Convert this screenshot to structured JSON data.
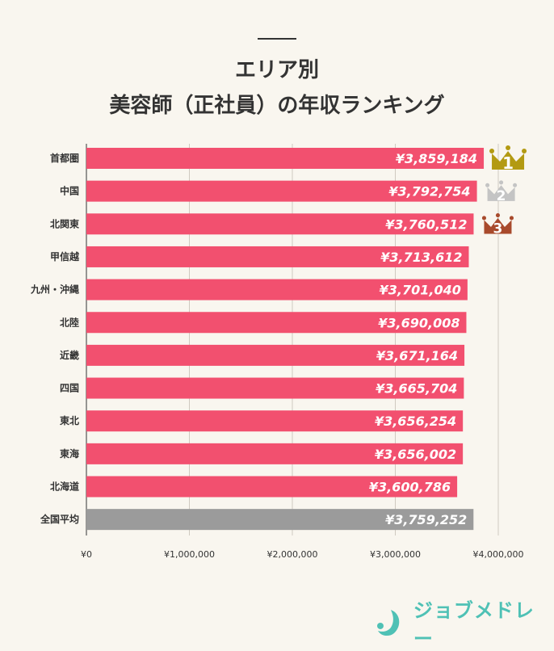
{
  "chart_data": {
    "type": "bar",
    "orientation": "horizontal",
    "title": "エリア別\n美容師（正社員）の年収ランキング",
    "title_lines": [
      "エリア別",
      "美容師（正社員）の年収ランキング"
    ],
    "categories": [
      "首都圏",
      "中国",
      "北関東",
      "甲信越",
      "九州・沖縄",
      "北陸",
      "近畿",
      "四国",
      "東北",
      "東海",
      "北海道",
      "全国平均"
    ],
    "values": [
      3859184,
      3792754,
      3760512,
      3713612,
      3701040,
      3690008,
      3671164,
      3665704,
      3656254,
      3656002,
      3600786,
      3759252
    ],
    "value_labels": [
      "¥3,859,184",
      "¥3,792,754",
      "¥3,760,512",
      "¥3,713,612",
      "¥3,701,040",
      "¥3,690,008",
      "¥3,671,164",
      "¥3,665,704",
      "¥3,656,254",
      "¥3,656,002",
      "¥3,600,786",
      "¥3,759,252"
    ],
    "xlim": [
      0,
      4000000
    ],
    "xticks": [
      0,
      1000000,
      2000000,
      3000000,
      4000000
    ],
    "xtick_labels": [
      "¥0",
      "¥1,000,000",
      "¥2,000,000",
      "¥3,000,000",
      "¥4,000,000"
    ],
    "grid": true,
    "rank_badges": [
      {
        "rank": "1",
        "icon": "crown-icon",
        "color": "#b39a12"
      },
      {
        "rank": "2",
        "icon": "crown-icon",
        "color": "#c4c4c4"
      },
      {
        "rank": "3",
        "icon": "crown-icon",
        "color": "#a84a2c"
      }
    ],
    "colors": {
      "bar": "#f2506f",
      "average_bar": "#9b9b9b",
      "grid": "#cfcac0",
      "background": "#f9f6ef"
    }
  },
  "brand": {
    "name": "ジョブメドレー",
    "color": "#4fc1b5"
  }
}
